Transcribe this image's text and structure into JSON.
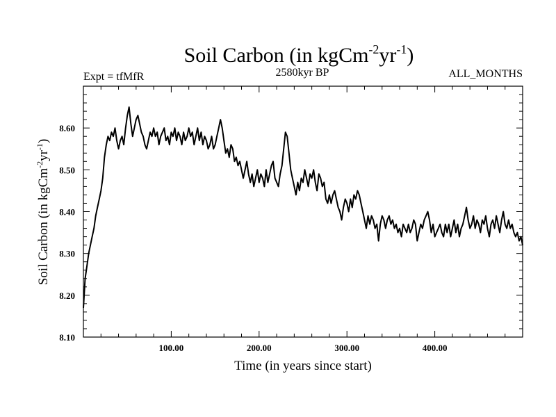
{
  "chart_data": {
    "type": "line",
    "title": {
      "main": "Soil Carbon (in kgCm",
      "sup1": "-2",
      "mid": "yr",
      "sup2": "-1",
      "close": ")"
    },
    "left_label": "Expt = tfMfR",
    "center_label": "2580kyr BP",
    "right_label": "ALL_MONTHS",
    "xlabel": "Time (in years since start)",
    "ylabel": {
      "main": "Soil Carbon (in kgCm",
      "sup1": "-2",
      "mid": "yr",
      "sup2": "-1",
      "close": ")"
    },
    "xlim": [
      0,
      500
    ],
    "ylim": [
      8.1,
      8.7
    ],
    "xticks": [
      100,
      200,
      300,
      400
    ],
    "xtick_labels": [
      "100.00",
      "200.00",
      "300.00",
      "400.00"
    ],
    "yticks": [
      8.1,
      8.2,
      8.3,
      8.4,
      8.5,
      8.6
    ],
    "ytick_labels": [
      "8.10",
      "8.20",
      "8.30",
      "8.40",
      "8.50",
      "8.60"
    ],
    "series": [
      {
        "name": "Soil Carbon",
        "color": "#000000",
        "x": [
          0,
          2,
          4,
          6,
          8,
          10,
          12,
          14,
          16,
          18,
          20,
          22,
          24,
          26,
          28,
          30,
          32,
          34,
          36,
          38,
          40,
          42,
          44,
          46,
          48,
          50,
          52,
          54,
          56,
          58,
          60,
          62,
          64,
          66,
          68,
          70,
          72,
          74,
          76,
          78,
          80,
          82,
          84,
          86,
          88,
          90,
          92,
          94,
          96,
          98,
          100,
          102,
          104,
          106,
          108,
          110,
          112,
          114,
          116,
          118,
          120,
          122,
          124,
          126,
          128,
          130,
          132,
          134,
          136,
          138,
          140,
          142,
          144,
          146,
          148,
          150,
          152,
          154,
          156,
          158,
          160,
          162,
          164,
          166,
          168,
          170,
          172,
          174,
          176,
          178,
          180,
          182,
          184,
          186,
          188,
          190,
          192,
          194,
          196,
          198,
          200,
          202,
          204,
          206,
          208,
          210,
          212,
          214,
          216,
          218,
          220,
          222,
          224,
          226,
          228,
          230,
          232,
          234,
          236,
          238,
          240,
          242,
          244,
          246,
          248,
          250,
          252,
          254,
          256,
          258,
          260,
          262,
          264,
          266,
          268,
          270,
          272,
          274,
          276,
          278,
          280,
          282,
          284,
          286,
          288,
          290,
          292,
          294,
          296,
          298,
          300,
          302,
          304,
          306,
          308,
          310,
          312,
          314,
          316,
          318,
          320,
          322,
          324,
          326,
          328,
          330,
          332,
          334,
          336,
          338,
          340,
          342,
          344,
          346,
          348,
          350,
          352,
          354,
          356,
          358,
          360,
          362,
          364,
          366,
          368,
          370,
          372,
          374,
          376,
          378,
          380,
          382,
          384,
          386,
          388,
          390,
          392,
          394,
          396,
          398,
          400,
          402,
          404,
          406,
          408,
          410,
          412,
          414,
          416,
          418,
          420,
          422,
          424,
          426,
          428,
          430,
          432,
          434,
          436,
          438,
          440,
          442,
          444,
          446,
          448,
          450,
          452,
          454,
          456,
          458,
          460,
          462,
          464,
          466,
          468,
          470,
          472,
          474,
          476,
          478,
          480,
          482,
          484,
          486,
          488,
          490,
          492,
          494,
          496,
          498,
          500
        ],
        "y": [
          8.17,
          8.24,
          8.27,
          8.3,
          8.32,
          8.34,
          8.36,
          8.39,
          8.41,
          8.43,
          8.45,
          8.48,
          8.53,
          8.56,
          8.58,
          8.57,
          8.59,
          8.58,
          8.6,
          8.57,
          8.55,
          8.57,
          8.58,
          8.56,
          8.6,
          8.63,
          8.65,
          8.61,
          8.58,
          8.6,
          8.62,
          8.63,
          8.61,
          8.59,
          8.58,
          8.56,
          8.55,
          8.57,
          8.59,
          8.58,
          8.6,
          8.58,
          8.59,
          8.56,
          8.58,
          8.59,
          8.6,
          8.57,
          8.58,
          8.56,
          8.59,
          8.58,
          8.6,
          8.57,
          8.59,
          8.58,
          8.56,
          8.59,
          8.57,
          8.58,
          8.6,
          8.58,
          8.59,
          8.56,
          8.58,
          8.6,
          8.57,
          8.59,
          8.56,
          8.58,
          8.57,
          8.55,
          8.56,
          8.58,
          8.55,
          8.56,
          8.58,
          8.6,
          8.62,
          8.6,
          8.57,
          8.54,
          8.55,
          8.53,
          8.56,
          8.55,
          8.52,
          8.53,
          8.51,
          8.52,
          8.5,
          8.48,
          8.5,
          8.52,
          8.49,
          8.47,
          8.49,
          8.46,
          8.48,
          8.5,
          8.47,
          8.49,
          8.48,
          8.46,
          8.5,
          8.47,
          8.49,
          8.51,
          8.52,
          8.48,
          8.47,
          8.46,
          8.49,
          8.51,
          8.55,
          8.59,
          8.58,
          8.54,
          8.5,
          8.48,
          8.46,
          8.44,
          8.47,
          8.45,
          8.48,
          8.47,
          8.5,
          8.48,
          8.46,
          8.49,
          8.48,
          8.5,
          8.47,
          8.45,
          8.49,
          8.48,
          8.46,
          8.47,
          8.43,
          8.42,
          8.44,
          8.42,
          8.44,
          8.45,
          8.43,
          8.41,
          8.4,
          8.38,
          8.41,
          8.43,
          8.42,
          8.4,
          8.43,
          8.41,
          8.44,
          8.43,
          8.45,
          8.44,
          8.42,
          8.4,
          8.38,
          8.36,
          8.39,
          8.37,
          8.39,
          8.38,
          8.36,
          8.37,
          8.33,
          8.37,
          8.39,
          8.38,
          8.36,
          8.38,
          8.39,
          8.37,
          8.38,
          8.36,
          8.37,
          8.35,
          8.36,
          8.34,
          8.37,
          8.36,
          8.35,
          8.37,
          8.35,
          8.36,
          8.38,
          8.37,
          8.33,
          8.35,
          8.37,
          8.36,
          8.38,
          8.39,
          8.4,
          8.38,
          8.35,
          8.37,
          8.34,
          8.35,
          8.36,
          8.37,
          8.35,
          8.34,
          8.37,
          8.35,
          8.37,
          8.34,
          8.36,
          8.38,
          8.35,
          8.37,
          8.34,
          8.36,
          8.37,
          8.39,
          8.41,
          8.38,
          8.36,
          8.37,
          8.39,
          8.36,
          8.38,
          8.37,
          8.35,
          8.38,
          8.37,
          8.39,
          8.36,
          8.34,
          8.37,
          8.38,
          8.36,
          8.39,
          8.37,
          8.35,
          8.38,
          8.4,
          8.37,
          8.36,
          8.38,
          8.36,
          8.37,
          8.35,
          8.34,
          8.35,
          8.33,
          8.34,
          8.32
        ]
      }
    ]
  }
}
